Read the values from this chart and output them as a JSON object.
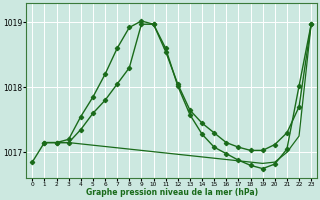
{
  "xlabel": "Graphe pression niveau de la mer (hPa)",
  "bg_color": "#cce8e0",
  "grid_color": "#ffffff",
  "line_color": "#1a6b1a",
  "ylim": [
    1016.6,
    1019.3
  ],
  "xlim": [
    -0.5,
    23.5
  ],
  "yticks": [
    1017,
    1018,
    1019
  ],
  "xticks": [
    0,
    1,
    2,
    3,
    4,
    5,
    6,
    7,
    8,
    9,
    10,
    11,
    12,
    13,
    14,
    15,
    16,
    17,
    18,
    19,
    20,
    21,
    22,
    23
  ],
  "series": [
    {
      "x": [
        0,
        1,
        2,
        3,
        4,
        5,
        6,
        7,
        8,
        9,
        10,
        11,
        12,
        13,
        14,
        15,
        16,
        17,
        18,
        19,
        20,
        21,
        22,
        23
      ],
      "y": [
        1016.85,
        1017.15,
        1017.15,
        1017.15,
        1017.35,
        1017.6,
        1017.8,
        1018.05,
        1018.3,
        1018.97,
        1018.97,
        1018.55,
        1018.05,
        1017.65,
        1017.45,
        1017.3,
        1017.15,
        1017.08,
        1017.03,
        1017.03,
        1017.12,
        1017.3,
        1017.7,
        1018.97
      ],
      "marker": true,
      "lw": 1.0
    },
    {
      "x": [
        1,
        2,
        3,
        4,
        5,
        6,
        7,
        8,
        9,
        10,
        11,
        12,
        13,
        14,
        15,
        16,
        17,
        18,
        19,
        20,
        21,
        22,
        23
      ],
      "y": [
        1017.15,
        1017.15,
        1017.2,
        1017.55,
        1017.85,
        1018.2,
        1018.6,
        1018.92,
        1019.02,
        1018.97,
        1018.6,
        1018.02,
        1017.58,
        1017.28,
        1017.08,
        1016.98,
        1016.88,
        1016.8,
        1016.75,
        1016.82,
        1017.05,
        1018.02,
        1018.97
      ],
      "marker": true,
      "lw": 1.0
    },
    {
      "x": [
        2,
        3,
        4,
        5,
        6,
        7,
        8,
        9,
        10,
        11,
        12,
        13,
        14,
        15,
        16,
        17,
        18,
        19,
        20,
        21,
        22,
        23
      ],
      "y": [
        1017.15,
        1017.15,
        1017.13,
        1017.11,
        1017.09,
        1017.07,
        1017.05,
        1017.03,
        1017.01,
        1016.99,
        1016.97,
        1016.95,
        1016.93,
        1016.91,
        1016.89,
        1016.87,
        1016.85,
        1016.83,
        1016.85,
        1017.0,
        1017.25,
        1018.97
      ],
      "marker": false,
      "lw": 0.9
    }
  ]
}
